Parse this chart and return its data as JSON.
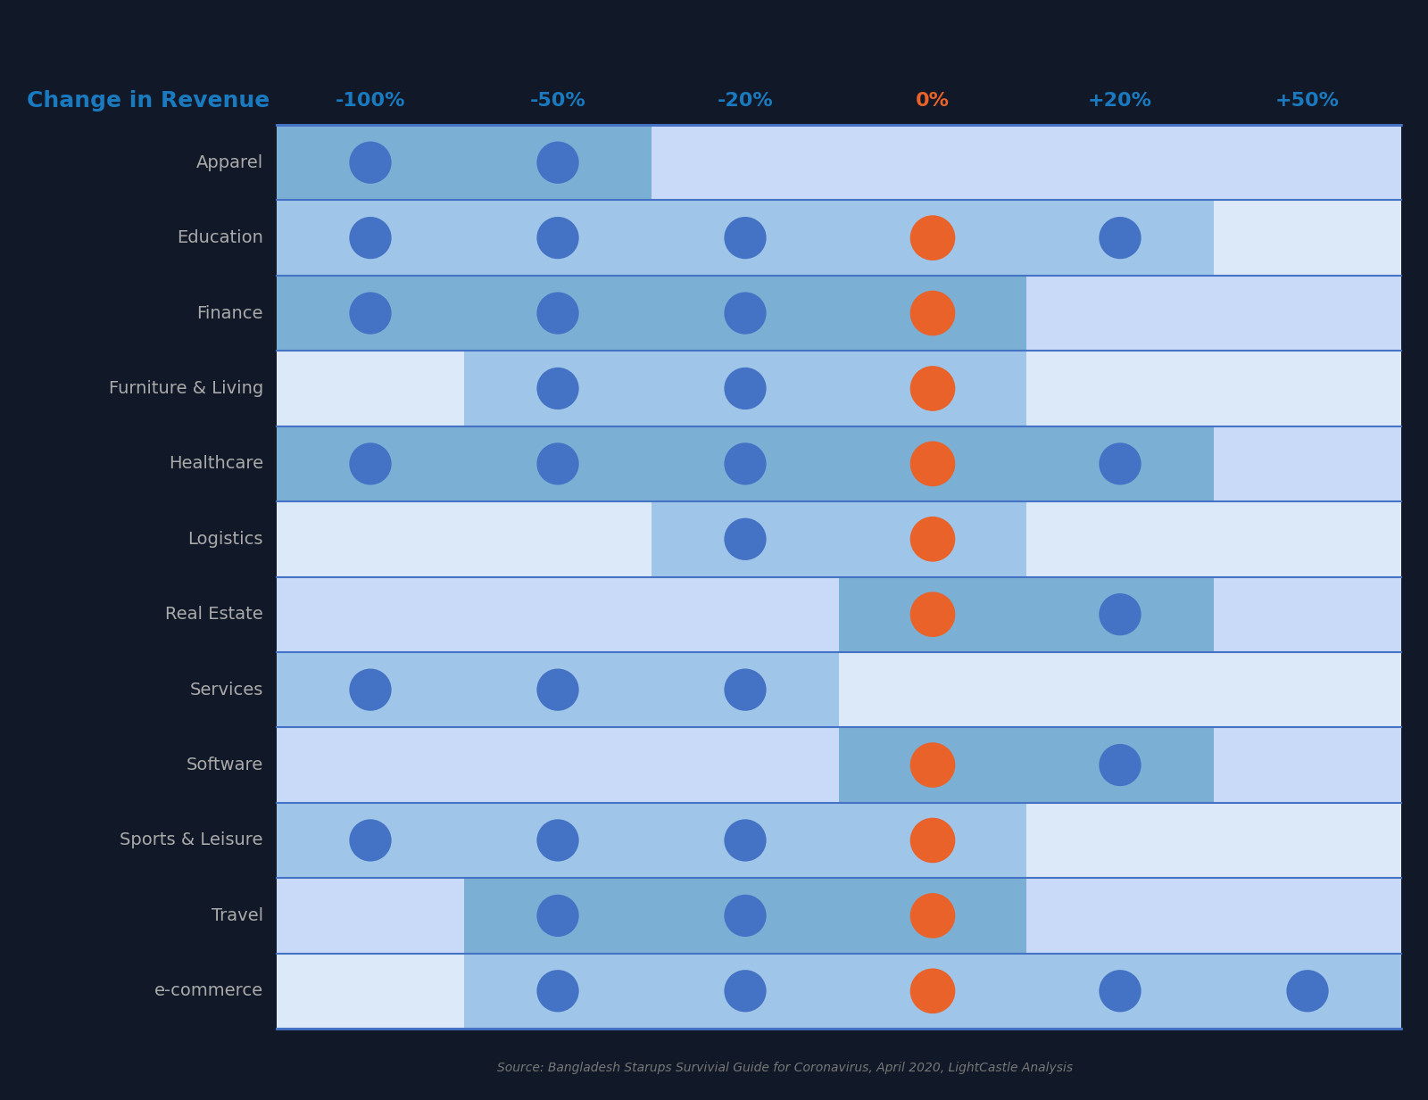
{
  "title": "Change in Revenue",
  "title_color": "#1a7abf",
  "columns": [
    "-100%",
    "-50%",
    "-20%",
    "0%",
    "+20%",
    "+50%"
  ],
  "col_colors": [
    "#1a7abf",
    "#1a7abf",
    "#1a7abf",
    "#e8622a",
    "#1a7abf",
    "#1a7abf"
  ],
  "sectors": [
    "Apparel",
    "Education",
    "Finance",
    "Furniture & Living",
    "Healthcare",
    "Logistics",
    "Real Estate",
    "Services",
    "Software",
    "Sports & Leisure",
    "Travel",
    "e-commerce"
  ],
  "dots": {
    "Apparel": [
      true,
      true,
      false,
      false,
      false,
      false
    ],
    "Education": [
      true,
      true,
      true,
      true,
      true,
      false
    ],
    "Finance": [
      true,
      true,
      true,
      true,
      false,
      false
    ],
    "Furniture & Living": [
      false,
      true,
      true,
      true,
      false,
      false
    ],
    "Healthcare": [
      true,
      true,
      true,
      true,
      true,
      false
    ],
    "Logistics": [
      false,
      false,
      true,
      true,
      false,
      false
    ],
    "Real Estate": [
      false,
      false,
      false,
      true,
      true,
      false
    ],
    "Services": [
      true,
      true,
      true,
      false,
      false,
      false
    ],
    "Software": [
      false,
      false,
      false,
      true,
      true,
      false
    ],
    "Sports & Leisure": [
      true,
      true,
      true,
      true,
      false,
      false
    ],
    "Travel": [
      false,
      true,
      true,
      true,
      false,
      false
    ],
    "e-commerce": [
      false,
      true,
      true,
      true,
      true,
      true
    ]
  },
  "orange_col": 3,
  "blue_dot_color": "#4472c4",
  "orange_dot_color": "#e8622a",
  "cell_color_with_dot_odd": "#7bafd4",
  "cell_color_with_dot_even": "#9fc5e8",
  "cell_color_no_dot_odd": "#c9daf8",
  "cell_color_no_dot_even": "#dce9f8",
  "grid_line_color": "#4472c4",
  "source_text": "Source: Bangladesh Starups Survivial Guide for Coronavirus, April 2020, LightCastle Analysis",
  "source_color": "#777777",
  "background": "#111827",
  "label_text_color": "#aaaaaa",
  "header_text_color": "#1a7abf"
}
